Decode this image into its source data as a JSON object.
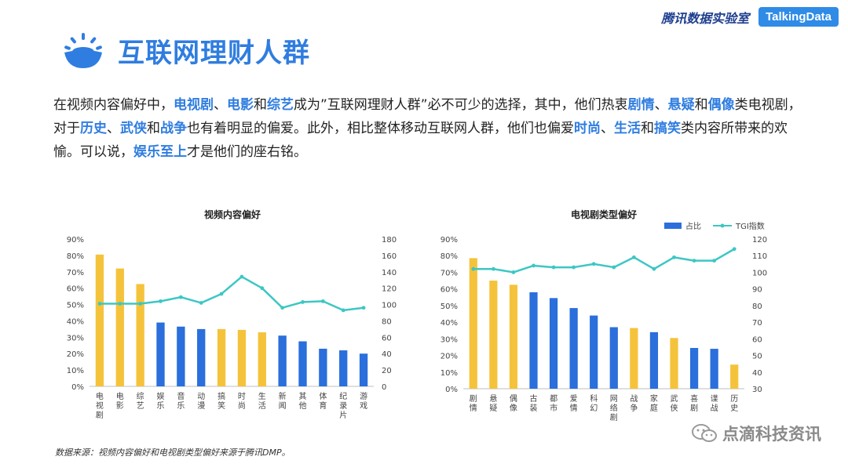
{
  "header": {
    "brand_text": "腾讯数据实验室",
    "brand_logo": "TalkingData"
  },
  "title": "互联网理财人群",
  "intro": [
    {
      "t": "在视频内容偏好中，",
      "hl": false
    },
    {
      "t": "电视剧",
      "hl": true
    },
    {
      "t": "、",
      "hl": false
    },
    {
      "t": "电影",
      "hl": true
    },
    {
      "t": "和",
      "hl": false
    },
    {
      "t": "综艺",
      "hl": true
    },
    {
      "t": "成为”互联网理财人群”必不可少的选择，其中，他们热衷",
      "hl": false
    },
    {
      "t": "剧情",
      "hl": true
    },
    {
      "t": "、",
      "hl": false
    },
    {
      "t": "悬疑",
      "hl": true
    },
    {
      "t": "和",
      "hl": false
    },
    {
      "t": "偶像",
      "hl": true
    },
    {
      "t": "类电视剧，对于",
      "hl": false
    },
    {
      "t": "历史",
      "hl": true
    },
    {
      "t": "、",
      "hl": false
    },
    {
      "t": "武侠",
      "hl": true
    },
    {
      "t": "和",
      "hl": false
    },
    {
      "t": "战争",
      "hl": true
    },
    {
      "t": "也有着明显的偏爱。此外，相比整体移动互联网人群，他们也偏爱",
      "hl": false
    },
    {
      "t": "时尚",
      "hl": true
    },
    {
      "t": "、",
      "hl": false
    },
    {
      "t": "生活",
      "hl": true
    },
    {
      "t": "和",
      "hl": false
    },
    {
      "t": "搞笑",
      "hl": true
    },
    {
      "t": "类内容所带来的欢愉。可以说，",
      "hl": false
    },
    {
      "t": "娱乐至上",
      "hl": true
    },
    {
      "t": "才是他们的座右铭。",
      "hl": false
    }
  ],
  "source": "数据来源：视频内容偏好和电视剧类型偏好来源于腾讯DMP。",
  "watermark": "点滴科技资讯",
  "colors": {
    "blue": "#2a6fdb",
    "yellow": "#f5c33b",
    "line": "#3cc7c4",
    "accent": "#2f7de0"
  },
  "chart_data": [
    {
      "type": "bar",
      "title": "视频内容偏好",
      "categories": [
        "电视剧",
        "电影",
        "综艺",
        "娱乐",
        "音乐",
        "动漫",
        "搞笑",
        "时尚",
        "生活",
        "新闻",
        "其他",
        "体育",
        "纪录片",
        "游戏"
      ],
      "category_labels": [
        [
          "电",
          "视",
          "剧"
        ],
        [
          "电",
          "影"
        ],
        [
          "综",
          "艺"
        ],
        [
          "娱",
          "乐"
        ],
        [
          "音",
          "乐"
        ],
        [
          "动",
          "漫"
        ],
        [
          "搞",
          "笑"
        ],
        [
          "时",
          "尚"
        ],
        [
          "生",
          "活"
        ],
        [
          "新",
          "闻"
        ],
        [
          "其",
          "他"
        ],
        [
          "体",
          "育"
        ],
        [
          "纪",
          "录",
          "片"
        ],
        [
          "游",
          "戏"
        ]
      ],
      "series": [
        {
          "values": [
            80.5,
            72,
            62.5,
            39,
            36.5,
            35,
            35,
            34.5,
            33,
            31,
            27.5,
            23,
            22,
            20
          ],
          "colors": [
            "yellow",
            "yellow",
            "yellow",
            "blue",
            "blue",
            "blue",
            "yellow",
            "yellow",
            "yellow",
            "blue",
            "blue",
            "blue",
            "blue",
            "blue"
          ]
        },
        {
          "type": "line",
          "axis": "right",
          "values": [
            101,
            101,
            101,
            104,
            109,
            102,
            113,
            134,
            120,
            96,
            103,
            104,
            93,
            96
          ]
        }
      ],
      "ylim": [
        0,
        90
      ],
      "y2lim": [
        0,
        180
      ],
      "yticks": [
        "0%",
        "10%",
        "20%",
        "30%",
        "40%",
        "50%",
        "60%",
        "70%",
        "80%",
        "90%"
      ],
      "y2ticks": [
        "0",
        "20",
        "40",
        "60",
        "80",
        "100",
        "120",
        "140",
        "160",
        "180"
      ],
      "legend": "none"
    },
    {
      "type": "bar",
      "title": "电视剧类型偏好",
      "categories": [
        "剧情",
        "悬疑",
        "偶像",
        "古装",
        "都市",
        "爱情",
        "科幻",
        "网络剧",
        "战争",
        "家庭",
        "武侠",
        "喜剧",
        "谍战",
        "历史"
      ],
      "category_labels": [
        [
          "剧",
          "情"
        ],
        [
          "悬",
          "疑"
        ],
        [
          "偶",
          "像"
        ],
        [
          "古",
          "装"
        ],
        [
          "都",
          "市"
        ],
        [
          "爱",
          "情"
        ],
        [
          "科",
          "幻"
        ],
        [
          "网",
          "络",
          "剧"
        ],
        [
          "战",
          "争"
        ],
        [
          "家",
          "庭"
        ],
        [
          "武",
          "侠"
        ],
        [
          "喜",
          "剧"
        ],
        [
          "谍",
          "战"
        ],
        [
          "历",
          "史"
        ]
      ],
      "series": [
        {
          "name": "占比",
          "values": [
            78.5,
            65,
            62.5,
            58,
            54.5,
            48.5,
            44,
            37,
            36.5,
            34,
            30.5,
            24.5,
            24,
            14.5
          ],
          "colors": [
            "yellow",
            "yellow",
            "yellow",
            "blue",
            "blue",
            "blue",
            "blue",
            "blue",
            "yellow",
            "blue",
            "yellow",
            "blue",
            "blue",
            "yellow"
          ]
        },
        {
          "name": "TGI指数",
          "type": "line",
          "axis": "right",
          "values": [
            102,
            102,
            100,
            104,
            103,
            103,
            105,
            103,
            109,
            102,
            109,
            107,
            107,
            114
          ]
        }
      ],
      "ylim": [
        0,
        90
      ],
      "y2lim": [
        30,
        120
      ],
      "yticks": [
        "0%",
        "10%",
        "20%",
        "30%",
        "40%",
        "50%",
        "60%",
        "70%",
        "80%",
        "90%"
      ],
      "y2ticks": [
        "30",
        "40",
        "50",
        "60",
        "70",
        "80",
        "90",
        "100",
        "110",
        "120"
      ],
      "legend": "top-right"
    }
  ]
}
